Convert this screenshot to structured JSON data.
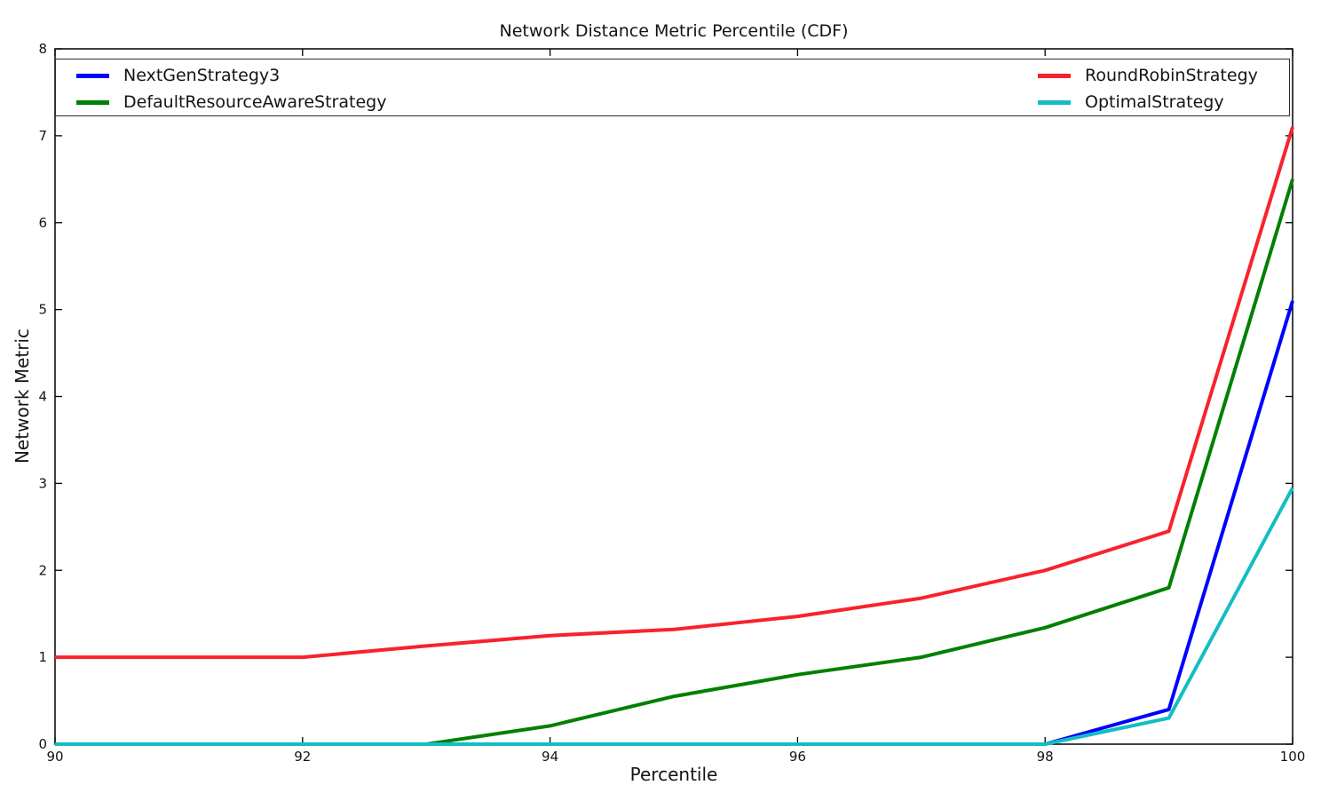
{
  "figure": {
    "background": "#ffffff",
    "spine_color": "#000000",
    "text_color": "#141414"
  },
  "chart_data": {
    "type": "line",
    "title": "Network Distance Metric Percentile (CDF)",
    "xlabel": "Percentile",
    "ylabel": "Network Metric",
    "xlim": [
      90,
      100
    ],
    "ylim": [
      0,
      8
    ],
    "xticks": [
      90,
      92,
      94,
      96,
      98,
      100
    ],
    "yticks": [
      0,
      1,
      2,
      3,
      4,
      5,
      6,
      7,
      8
    ],
    "grid": false,
    "legend_position": "top inside, full-width box, 2 columns",
    "x": [
      90,
      91,
      92,
      93,
      94,
      95,
      96,
      97,
      98,
      99,
      100
    ],
    "series": [
      {
        "name": "NextGenStrategy3",
        "color": "#0000ff",
        "values": [
          0,
          0,
          0,
          0,
          0,
          0,
          0,
          0,
          0,
          0.4,
          5.1
        ]
      },
      {
        "name": "DefaultResourceAwareStrategy",
        "color": "#008000",
        "values": [
          0,
          0,
          0,
          0,
          0.21,
          0.55,
          0.8,
          1.0,
          1.34,
          1.8,
          6.5
        ]
      },
      {
        "name": "RoundRobinStrategy",
        "color": "#f8222d",
        "values": [
          1,
          1,
          1,
          1.13,
          1.25,
          1.32,
          1.47,
          1.68,
          2.0,
          2.45,
          7.1
        ]
      },
      {
        "name": "OptimalStrategy",
        "color": "#13bdc4",
        "values": [
          0,
          0,
          0,
          0,
          0,
          0,
          0,
          0,
          0,
          0.3,
          2.95
        ]
      }
    ],
    "legend_columns": [
      [
        "NextGenStrategy3",
        "DefaultResourceAwareStrategy"
      ],
      [
        "RoundRobinStrategy",
        "OptimalStrategy"
      ]
    ]
  }
}
